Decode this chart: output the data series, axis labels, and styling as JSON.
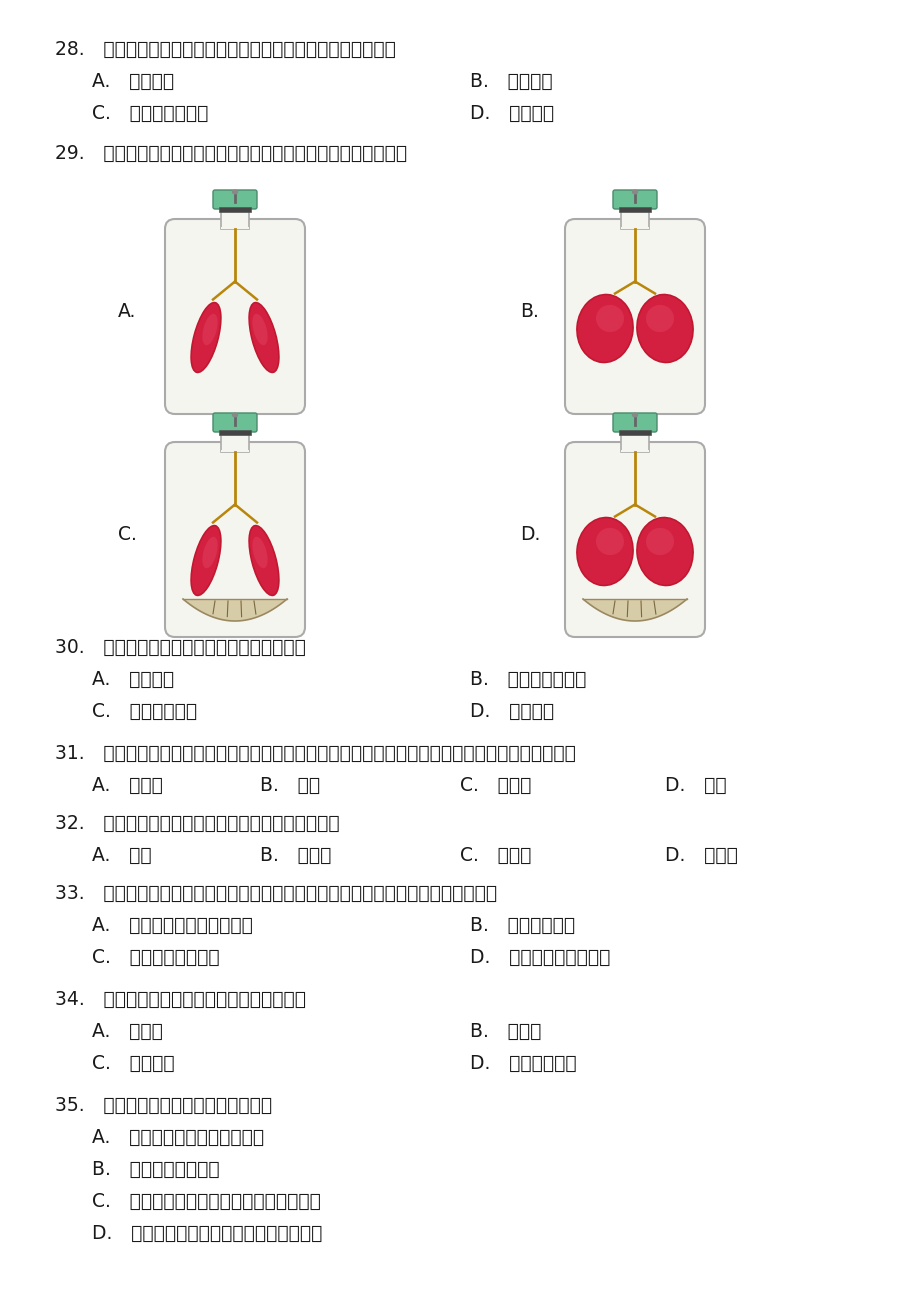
{
  "bg_color": "#ffffff",
  "text_color": "#000000",
  "q28": "28. 拔或剪除鼻毛是不科学的，因为鼻毛具有哪种功能（　　）",
  "q28A": "A. 分泌黏液",
  "q28B": "B. 温暖空气",
  "q28C": "C. 阻挡灰尘、病菌",
  "q28D": "D. 湿润空气",
  "q29": "29. 以下为模拟隔肌运动图示，请问模拟肺吸气的图示是（　　）",
  "q30": "30. 与吸入的气体相比，呼出的气体（　　）",
  "q30A": "A. 不含氧气",
  "q30B": "B. 全部是二氧化碳",
  "q30C": "C. 二氧化碳增多",
  "q30D": "D. 氧气增多",
  "q31": "31. 在盛有新鲜血液的试管中加入少量柠檬酸钙，静止一段时间后，下层呢深红色的部分是（　　）",
  "q31A": "A. 红细胞",
  "q31B": "B. 血清",
  "q31C": "C. 血小板",
  "q31D": "D. 血浆",
  "q32": "32. 血细胞中没有细胞核，形状不规则的是（　　）",
  "q32A": "A. 血浆",
  "q32B": "B. 血小板",
  "q32C": "C. 红细胞",
  "q32D": "D. 白细胞",
  "q33": "33. 血液能不停地在血管、心脏组成的封闭的管道内循环流动，其动力来自（　　）",
  "q33A": "A. 心脏有节律的收缩和舒张",
  "q33B": "B. 动脉瓣的推动",
  "q33C": "C. 静脉的收缩和舒张",
  "q33D": "D. 骨骼肌的收缩和舒张",
  "q34": "34. 能为心肌提供营养的循环途径是（　　）",
  "q34A": "A. 体循环",
  "q34B": "B. 肺循环",
  "q34C": "C. 冠脉循环",
  "q34D": "D. 以上三者均可",
  "q35": "35. 关于动脉的叙述正确的是（　　）",
  "q35A": "A. 动脉是指与心脏相通的血管",
  "q35B": "B. 运输动脉血的血管",
  "q35C": "C. 将身体各部分的血液送回到心脏的血管",
  "q35D": "D. 将血液从心脏送到身体各部分去的血管"
}
